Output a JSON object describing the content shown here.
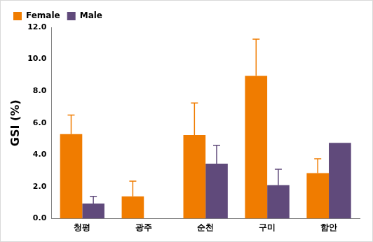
{
  "chart_data": {
    "type": "bar",
    "y_label": "GSI (%)",
    "categories": [
      "청평",
      "광주",
      "순천",
      "구미",
      "함안"
    ],
    "series": [
      {
        "name": "Female",
        "color": "#f07c00",
        "values": [
          5.3,
          1.4,
          5.25,
          8.95,
          2.85
        ],
        "errors": [
          1.2,
          0.95,
          2.0,
          2.3,
          0.9
        ]
      },
      {
        "name": "Male",
        "color": "#604a7b",
        "values": [
          0.95,
          null,
          3.45,
          2.1,
          4.75
        ],
        "errors": [
          0.45,
          null,
          1.15,
          1.0,
          null
        ]
      }
    ],
    "ylim": [
      0,
      12
    ],
    "yticks": [
      {
        "value": 0,
        "label": "0.0"
      },
      {
        "value": 2,
        "label": "2.0"
      },
      {
        "value": 4,
        "label": "4.0"
      },
      {
        "value": 6,
        "label": "6.0"
      },
      {
        "value": 8,
        "label": "8.0"
      },
      {
        "value": 10,
        "label": "10.0"
      },
      {
        "value": 12,
        "label": "12.0"
      }
    ],
    "grid": false,
    "legend": "upper left"
  }
}
